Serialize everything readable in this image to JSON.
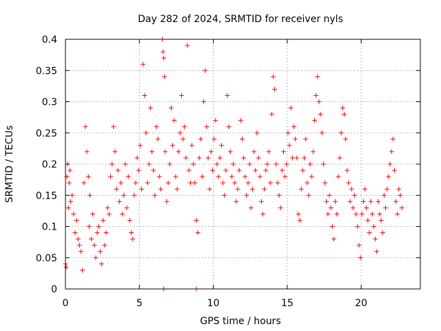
{
  "chart_data": {
    "type": "scatter",
    "title": "Day 282 of 2024, SRMTID for receiver nyls",
    "xlabel": "GPS time / hours",
    "ylabel": "SRMTID / TECUs",
    "xlim": [
      0,
      24
    ],
    "ylim": [
      0,
      0.4
    ],
    "x_ticks": [
      0,
      5,
      10,
      15,
      20
    ],
    "x_tick_labels": [
      "0",
      "5",
      "10",
      "15",
      "20"
    ],
    "y_ticks": [
      0,
      0.05,
      0.1,
      0.15,
      0.2,
      0.25,
      0.3,
      0.35,
      0.4
    ],
    "y_tick_labels": [
      "0",
      "0.05",
      "0.1",
      "0.15",
      "0.2",
      "0.25",
      "0.3",
      "0.35",
      "0.4"
    ],
    "grid": true,
    "marker": "plus",
    "series": [
      {
        "name": "SRMTID",
        "color": "#ff0000",
        "x": [
          0.0,
          0.05,
          0.1,
          0.15,
          0.2,
          0.25,
          0.3,
          0.35,
          0.45,
          0.55,
          0.65,
          0.75,
          0.85,
          0.95,
          1.05,
          1.15,
          1.25,
          1.35,
          1.45,
          1.55,
          1.6,
          1.65,
          1.75,
          1.85,
          1.95,
          2.05,
          2.15,
          2.25,
          2.35,
          2.45,
          2.55,
          2.65,
          2.75,
          2.85,
          2.95,
          3.05,
          3.15,
          3.25,
          3.35,
          3.45,
          3.55,
          3.65,
          3.75,
          3.85,
          3.95,
          4.05,
          4.15,
          4.25,
          4.35,
          4.45,
          4.55,
          4.65,
          4.75,
          4.85,
          4.95,
          5.05,
          5.15,
          5.25,
          5.35,
          5.45,
          5.55,
          5.65,
          5.75,
          5.85,
          5.95,
          6.05,
          6.15,
          6.25,
          6.35,
          6.45,
          6.55,
          6.6,
          6.65,
          6.7,
          6.75,
          6.85,
          6.95,
          7.05,
          7.15,
          7.25,
          7.35,
          7.45,
          7.55,
          7.65,
          7.75,
          7.85,
          7.95,
          8.05,
          8.15,
          8.25,
          8.35,
          8.45,
          8.55,
          8.65,
          8.75,
          8.85,
          8.95,
          9.05,
          9.15,
          9.25,
          9.35,
          9.45,
          9.55,
          9.65,
          9.75,
          9.85,
          9.95,
          10.05,
          10.15,
          10.25,
          10.35,
          10.45,
          10.55,
          10.65,
          10.75,
          10.85,
          10.95,
          11.05,
          11.15,
          11.25,
          11.35,
          11.45,
          11.55,
          11.65,
          11.75,
          11.85,
          11.95,
          12.05,
          12.15,
          12.25,
          12.35,
          12.45,
          12.55,
          12.65,
          12.75,
          12.85,
          12.95,
          13.05,
          13.15,
          13.25,
          13.35,
          13.45,
          13.55,
          13.65,
          13.75,
          13.85,
          13.95,
          14.05,
          14.15,
          14.25,
          14.35,
          14.45,
          14.55,
          14.65,
          14.75,
          14.85,
          14.95,
          15.05,
          15.15,
          15.25,
          15.35,
          15.45,
          15.55,
          15.65,
          15.75,
          15.85,
          15.95,
          16.05,
          16.15,
          16.25,
          16.35,
          16.45,
          16.55,
          16.65,
          16.75,
          16.85,
          16.95,
          17.05,
          17.15,
          17.25,
          17.35,
          17.45,
          17.55,
          17.65,
          17.75,
          17.85,
          17.95,
          18.05,
          18.15,
          18.25,
          18.35,
          18.45,
          18.55,
          18.65,
          18.75,
          18.85,
          18.95,
          19.05,
          19.15,
          19.25,
          19.35,
          19.45,
          19.55,
          19.65,
          19.75,
          19.85,
          19.95,
          20.05,
          20.15,
          20.25,
          20.35,
          20.45,
          20.55,
          20.65,
          20.75,
          20.85,
          20.95,
          21.05,
          21.15,
          21.25,
          21.35,
          21.45,
          21.55,
          21.65,
          21.75,
          21.85,
          21.95,
          22.05,
          22.15,
          22.25,
          22.35,
          22.45,
          22.55,
          22.65,
          22.75,
          8.85,
          6.65
        ],
        "y": [
          0.04,
          0.035,
          0.18,
          0.2,
          0.13,
          0.17,
          0.19,
          0.14,
          0.15,
          0.12,
          0.09,
          0.11,
          0.08,
          0.07,
          0.06,
          0.03,
          0.17,
          0.26,
          0.22,
          0.18,
          0.1,
          0.15,
          0.08,
          0.12,
          0.07,
          0.05,
          0.09,
          0.1,
          0.06,
          0.04,
          0.11,
          0.07,
          0.09,
          0.13,
          0.12,
          0.18,
          0.2,
          0.26,
          0.22,
          0.16,
          0.19,
          0.14,
          0.17,
          0.12,
          0.15,
          0.2,
          0.13,
          0.18,
          0.11,
          0.09,
          0.08,
          0.15,
          0.17,
          0.21,
          0.19,
          0.23,
          0.16,
          0.36,
          0.31,
          0.25,
          0.17,
          0.2,
          0.29,
          0.22,
          0.19,
          0.15,
          0.26,
          0.24,
          0.18,
          0.16,
          0.4,
          0.38,
          0.37,
          0.34,
          0.22,
          0.14,
          0.17,
          0.2,
          0.29,
          0.23,
          0.27,
          0.18,
          0.16,
          0.22,
          0.25,
          0.31,
          0.24,
          0.26,
          0.21,
          0.39,
          0.19,
          0.17,
          0.23,
          0.2,
          0.17,
          0.11,
          0.09,
          0.21,
          0.24,
          0.18,
          0.3,
          0.35,
          0.26,
          0.21,
          0.16,
          0.22,
          0.19,
          0.24,
          0.27,
          0.2,
          0.18,
          0.21,
          0.23,
          0.17,
          0.15,
          0.19,
          0.31,
          0.26,
          0.22,
          0.18,
          0.2,
          0.17,
          0.14,
          0.16,
          0.19,
          0.27,
          0.24,
          0.21,
          0.18,
          0.15,
          0.17,
          0.2,
          0.13,
          0.16,
          0.22,
          0.19,
          0.25,
          0.21,
          0.18,
          0.14,
          0.12,
          0.16,
          0.19,
          0.2,
          0.22,
          0.17,
          0.28,
          0.34,
          0.32,
          0.2,
          0.17,
          0.15,
          0.13,
          0.19,
          0.22,
          0.18,
          0.2,
          0.25,
          0.23,
          0.29,
          0.21,
          0.26,
          0.24,
          0.21,
          0.12,
          0.11,
          0.16,
          0.19,
          0.21,
          0.24,
          0.17,
          0.15,
          0.2,
          0.18,
          0.22,
          0.27,
          0.31,
          0.34,
          0.3,
          0.28,
          0.25,
          0.2,
          0.17,
          0.14,
          0.12,
          0.15,
          0.13,
          0.1,
          0.08,
          0.14,
          0.12,
          0.18,
          0.21,
          0.25,
          0.29,
          0.28,
          0.24,
          0.19,
          0.17,
          0.14,
          0.16,
          0.13,
          0.15,
          0.12,
          0.1,
          0.07,
          0.05,
          0.12,
          0.14,
          0.16,
          0.13,
          0.11,
          0.09,
          0.14,
          0.12,
          0.1,
          0.08,
          0.06,
          0.14,
          0.12,
          0.11,
          0.09,
          0.15,
          0.13,
          0.16,
          0.18,
          0.2,
          0.22,
          0.24,
          0.19,
          0.14,
          0.12,
          0.16,
          0.15,
          0.13,
          0.0,
          0.0
        ]
      }
    ]
  }
}
